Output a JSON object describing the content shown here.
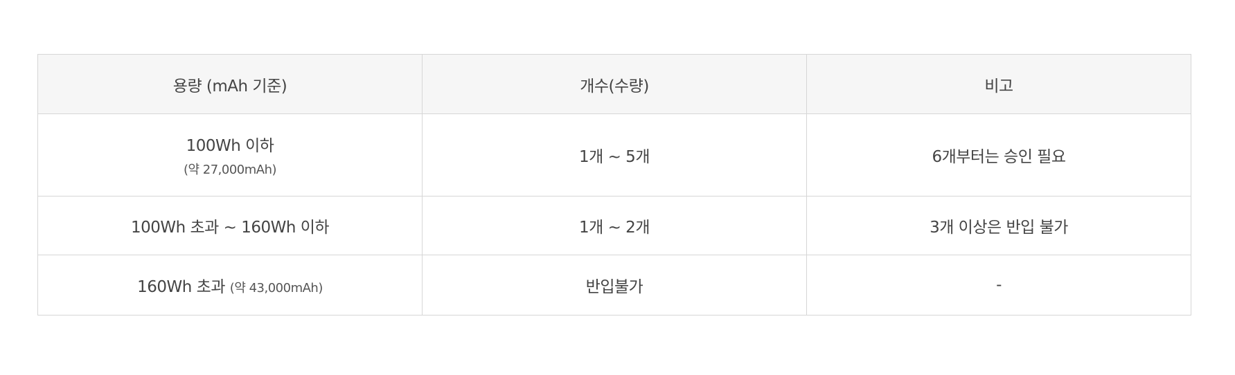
{
  "table": {
    "headers": [
      "용량 (mAh 기준)",
      "개수(수량)",
      "비고"
    ],
    "rows": [
      {
        "capacity": "100Wh 이하",
        "capacity_note": "(약 27,000mAh)",
        "count": "1개 ~ 5개",
        "remark": "6개부터는 승인 필요"
      },
      {
        "capacity": "100Wh 초과 ~ 160Wh 이하",
        "capacity_note": "",
        "count": "1개 ~ 2개",
        "remark": "3개 이상은 반입 불가"
      },
      {
        "capacity": "160Wh 초과",
        "capacity_note": "(약 43,000mAh)",
        "count": "반입불가",
        "remark": "-"
      }
    ]
  }
}
